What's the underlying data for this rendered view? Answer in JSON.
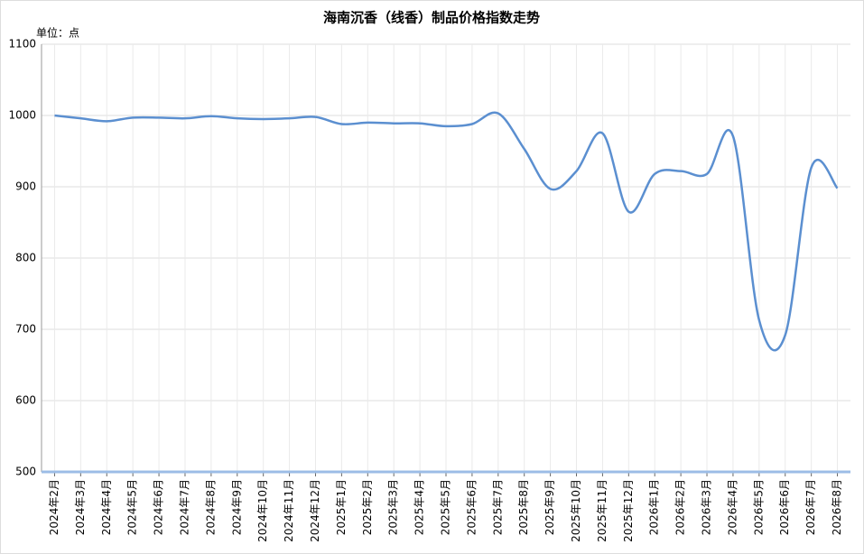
{
  "chart_data": {
    "type": "line",
    "title": "海南沉香（线香）制品价格指数走势",
    "y_unit_label": "单位：点",
    "categories": [
      "2024年2月",
      "2024年3月",
      "2024年4月",
      "2024年5月",
      "2024年6月",
      "2024年7月",
      "2024年8月",
      "2024年9月",
      "2024年10月",
      "2024年11月",
      "2024年12月",
      "2025年1月",
      "2025年2月",
      "2025年3月",
      "2025年4月",
      "2025年5月",
      "2025年6月",
      "2025年7月",
      "2025年8月",
      "2025年9月",
      "2025年10月",
      "2025年11月",
      "2025年12月",
      "2026年1月",
      "2026年2月",
      "2026年3月",
      "2026年4月",
      "2026年5月",
      "2026年6月",
      "2026年7月",
      "2026年8月"
    ],
    "series": [
      {
        "name": "价格指数",
        "color": "#5b8fd0",
        "values": [
          1000,
          996,
          992,
          997,
          997,
          996,
          999,
          996,
          995,
          996,
          998,
          988,
          990,
          989,
          989,
          985,
          988,
          1003,
          953,
          897,
          922,
          975,
          865,
          918,
          922,
          918,
          971,
          713,
          692,
          927,
          898
        ]
      }
    ],
    "ylim": [
      500,
      1100
    ],
    "yticks": [
      500,
      600,
      700,
      800,
      900,
      1000,
      1100
    ],
    "grid": true,
    "smooth": true
  }
}
